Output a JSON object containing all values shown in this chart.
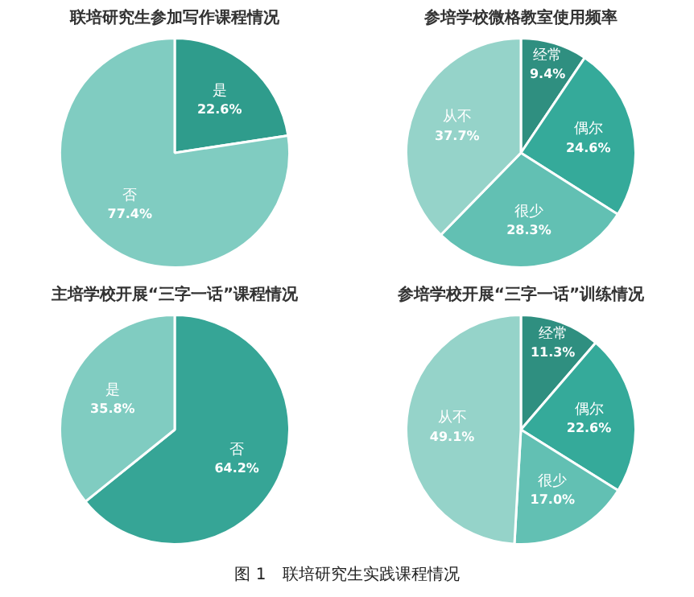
{
  "chart_data": [
    {
      "type": "pie",
      "title": "联培研究生参加写作课程情况",
      "categories": [
        "是",
        "否"
      ],
      "values": [
        22.6,
        77.4
      ],
      "value_labels": [
        "22.6%",
        "77.4%"
      ],
      "colors": [
        "#2f9c8c",
        "#80ccc1"
      ]
    },
    {
      "type": "pie",
      "title": "参培学校微格教室使用频率",
      "categories": [
        "经常",
        "偶尔",
        "很少",
        "从不"
      ],
      "values": [
        9.4,
        24.6,
        28.3,
        37.7
      ],
      "value_labels": [
        "9.4%",
        "24.6%",
        "28.3%",
        "37.7%"
      ],
      "colors": [
        "#2f8f80",
        "#35aa9a",
        "#62c0b3",
        "#95d3c9"
      ]
    },
    {
      "type": "pie",
      "title": "主培学校开展“三字一话”课程情况",
      "categories": [
        "否",
        "是"
      ],
      "values": [
        64.2,
        35.8
      ],
      "value_labels": [
        "64.2%",
        "35.8%"
      ],
      "colors": [
        "#36a596",
        "#80ccc1"
      ]
    },
    {
      "type": "pie",
      "title": "参培学校开展“三字一话”训练情况",
      "categories": [
        "经常",
        "偶尔",
        "很少",
        "从不"
      ],
      "values": [
        11.3,
        22.6,
        17.0,
        49.1
      ],
      "value_labels": [
        "11.3%",
        "22.6%",
        "17.0%",
        "49.1%"
      ],
      "colors": [
        "#2f8f80",
        "#35aa9a",
        "#62c0b3",
        "#95d3c9"
      ],
      "annotations": [
        "图 1　联培研究生实践课程情况"
      ]
    }
  ]
}
